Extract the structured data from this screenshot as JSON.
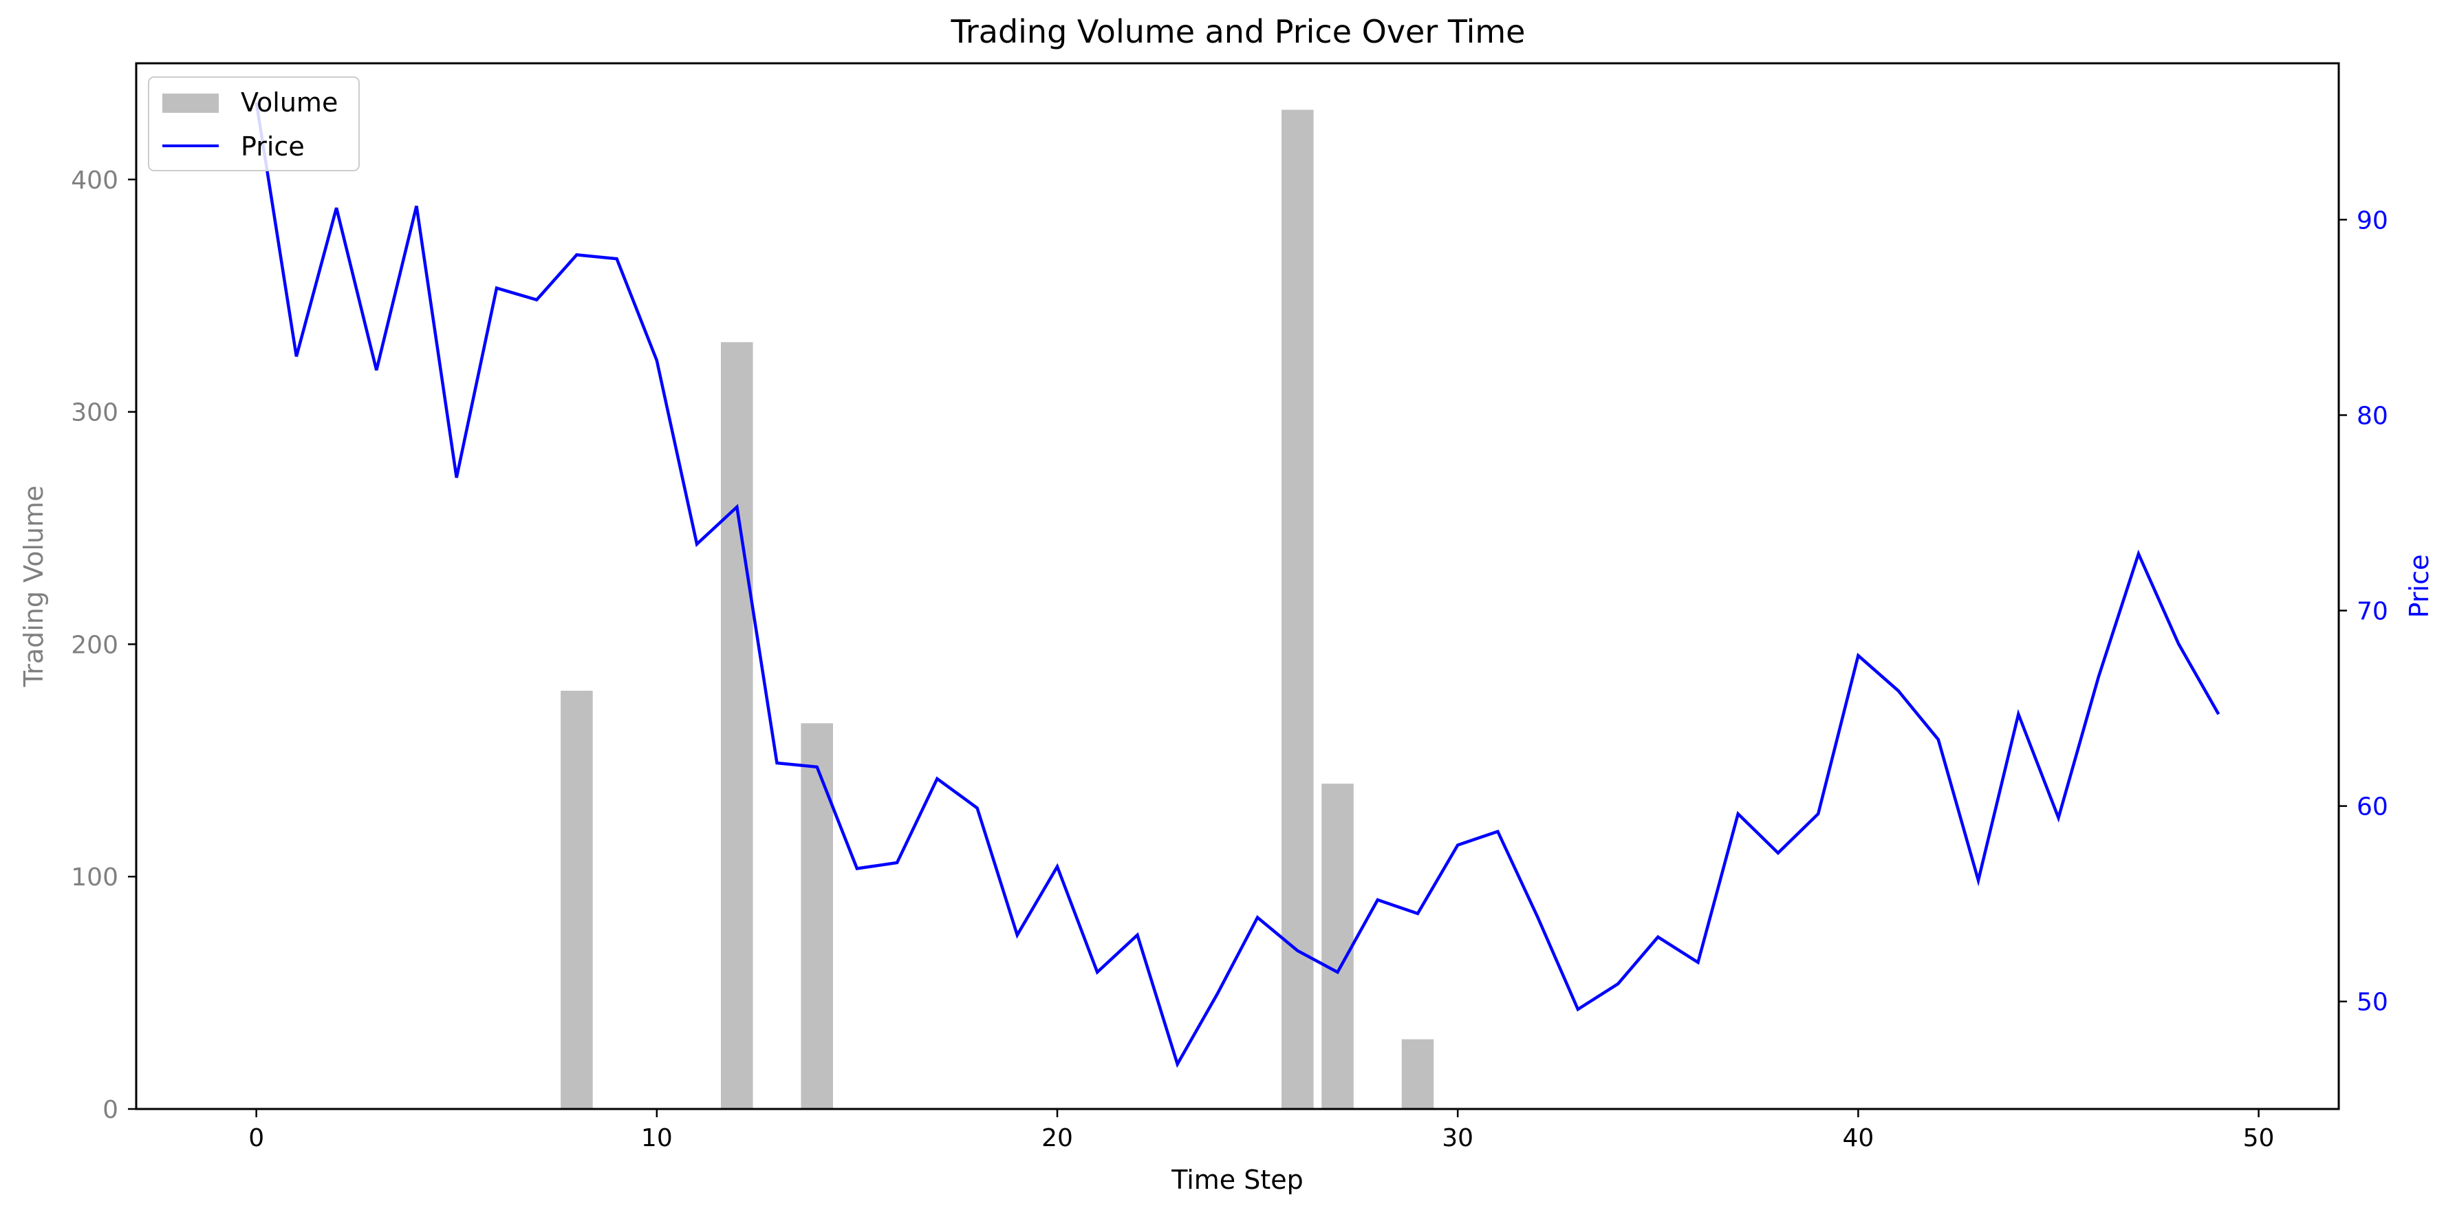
{
  "chart_data": {
    "type": "bar+line",
    "title": "Trading Volume and Price Over Time",
    "xlabel": "Time Step",
    "ylabel_left": "Trading Volume",
    "ylabel_right": "Price",
    "xlim": [
      -3,
      52
    ],
    "ylim_left": [
      0,
      450
    ],
    "ylim_right": [
      44.5,
      98
    ],
    "x_ticks": [
      0,
      10,
      20,
      30,
      40,
      50
    ],
    "y_left_ticks": [
      0,
      100,
      200,
      300,
      400
    ],
    "y_right_ticks": [
      50,
      60,
      70,
      80,
      90
    ],
    "legend_placement": "upper-left",
    "colors": {
      "volume": "#bfbfbf",
      "price": "#0000ff",
      "left_axis": "#808080",
      "right_axis": "#0000ff"
    },
    "series": [
      {
        "name": "Volume",
        "type": "bar",
        "x": [
          8,
          12,
          14,
          26,
          27,
          29
        ],
        "values": [
          180,
          330,
          166,
          430,
          140,
          30
        ]
      },
      {
        "name": "Price",
        "type": "line",
        "x": [
          0,
          1,
          2,
          3,
          4,
          5,
          6,
          7,
          8,
          9,
          10,
          11,
          12,
          13,
          14,
          15,
          16,
          17,
          18,
          19,
          20,
          21,
          22,
          23,
          24,
          25,
          26,
          27,
          28,
          29,
          30,
          31,
          32,
          33,
          34,
          35,
          36,
          37,
          38,
          39,
          40,
          41,
          42,
          43,
          44,
          45,
          46,
          47,
          48,
          49
        ],
        "values": [
          96,
          83,
          90.6,
          82.3,
          90.7,
          76.8,
          86.5,
          85.9,
          88.2,
          88,
          82.8,
          73.4,
          75.3,
          62.2,
          62,
          56.8,
          57.1,
          61.4,
          59.9,
          53.4,
          56.9,
          51.5,
          53.4,
          46.8,
          50.4,
          54.3,
          52.6,
          51.5,
          55.2,
          54.5,
          58,
          58.7,
          54.3,
          49.6,
          50.9,
          53.3,
          52,
          59.6,
          57.6,
          59.6,
          67.7,
          65.9,
          63.4,
          56.2,
          64.7,
          59.4,
          66.6,
          72.9,
          68.3,
          64.7
        ]
      }
    ]
  }
}
